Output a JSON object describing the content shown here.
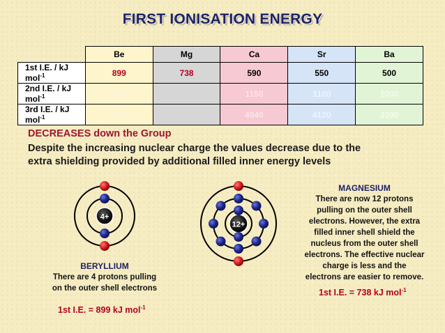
{
  "title": "FIRST IONISATION ENERGY",
  "table": {
    "headers": [
      "Be",
      "Mg",
      "Ca",
      "Sr",
      "Ba"
    ],
    "rows": [
      {
        "label": "1st I.E. / kJ mol",
        "sup": "-1",
        "values": [
          "899",
          "738",
          "590",
          "550",
          "500"
        ]
      },
      {
        "label": "2nd I.E. / kJ mol",
        "sup": "-1",
        "values": [
          "1800",
          "",
          "1150",
          "1100",
          "1000"
        ]
      },
      {
        "label": "3rd I.E. / kJ mol",
        "sup": "-1",
        "values": [
          "14849",
          "",
          "4940",
          "4120",
          "3390"
        ]
      }
    ]
  },
  "trend": {
    "heading": "DECREASES down the Group",
    "body_line1": "Despite the increasing nuclear charge the values decrease due to the",
    "body_line2": "extra shielding provided by additional filled inner energy levels"
  },
  "beryllium": {
    "nucleus_label": "4+",
    "heading": "BERYLLIUM",
    "line1": "There are 4 protons pulling",
    "line2": "on the outer shell electrons",
    "ie_text": "1st I.E. = 899 kJ mol",
    "ie_sup": "-1"
  },
  "magnesium": {
    "nucleus_label": "12+",
    "heading": "MAGNESIUM",
    "lines": [
      "There are now 12 protons",
      "pulling on the outer shell",
      "electrons. However, the extra",
      "filled inner shell shield the",
      "nucleus from the outer shell",
      "electrons. The effective nuclear",
      "charge is less and the",
      "electrons are easier to remove."
    ],
    "ie_text": "1st I.E. = 738 kJ mol",
    "ie_sup": "-1"
  },
  "colors": {
    "background": "#f6ecc2",
    "title": "#1c2266",
    "accent_red": "#b4001e",
    "electron_inner": "#1f2a8a",
    "electron_outer": "#d81e1e",
    "nucleus": "#111111"
  }
}
